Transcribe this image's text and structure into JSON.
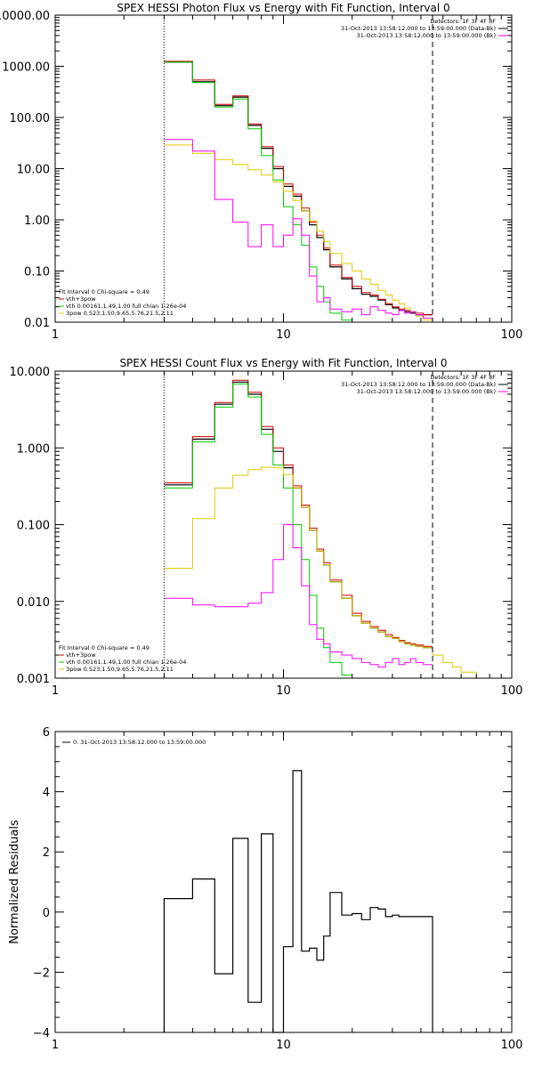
{
  "chart_data": [
    {
      "type": "line",
      "title": "SPEX HESSI Photon Flux vs Energy with Fit Function, Interval 0",
      "xscale": "log",
      "yscale": "log",
      "xlim": [
        1,
        100
      ],
      "ylim": [
        0.01,
        10000
      ],
      "x_ticks": [
        1,
        10,
        100
      ],
      "y_ticks": [
        0.01,
        0.1,
        1,
        10,
        100,
        1000,
        10000
      ],
      "x_tick_labels": [
        "1",
        "10",
        "100"
      ],
      "y_tick_labels": [
        "0.01",
        "0.10",
        "1.00",
        "10.00",
        "100.00",
        "1000.00",
        "10000.00"
      ],
      "vlines": [
        {
          "x": 3.0,
          "style": "dotted"
        },
        {
          "x": 45.0,
          "style": "dashed"
        }
      ],
      "legend_top_right": [
        {
          "text": "Detectors: 1F 3F 4F 8F",
          "color": "#000000"
        },
        {
          "text": "31-Oct-2013 13:58:12.000 to 13:59:00.000 (Data-Bk)",
          "color": "#000000"
        },
        {
          "text": "31-Oct-2013 13:58:12.000 to 13:59:00.000 (Bk)",
          "color": "#ff00ff"
        }
      ],
      "legend_bottom_left": [
        {
          "text": "Fit Interval 0   Chi-square = 0.49",
          "color": "#000000"
        },
        {
          "text": "vth+3pow",
          "color": "#cc0000"
        },
        {
          "text": "vth 0.00161,1.49,1.00  full chian 1.26e-04",
          "color": "#00cc00"
        },
        {
          "text": "3pow 0.523,1.50,9.65,5.76,21.5,2.11",
          "color": "#ddcc00"
        }
      ],
      "edges": [
        3.0,
        4.0,
        5.0,
        6.0,
        7.0,
        8.0,
        9.0,
        10.0,
        11.0,
        12.0,
        13.0,
        14.0,
        15.0,
        16.0,
        18.0,
        20.0,
        22.0,
        24.0,
        26.0,
        28.0,
        30.0,
        32.0,
        34.0,
        36.0,
        38.0,
        41.0,
        45.0
      ],
      "series": [
        {
          "color": "#000000",
          "width": 1.2,
          "edges": [
            3.0,
            4.0,
            5.0,
            6.0,
            7.0,
            8.0,
            9.0,
            10.0,
            11.0,
            12.0,
            13.0,
            14.0,
            15.0,
            16.0,
            18.0,
            20.0,
            22.0,
            24.0,
            26.0,
            28.0,
            30.0,
            32.0,
            34.0,
            36.0,
            38.0,
            41.0,
            45.0
          ],
          "values": [
            1200,
            500,
            170,
            250,
            70,
            25,
            10,
            4.5,
            2.9,
            1.5,
            0.8,
            0.45,
            0.26,
            0.12,
            0.07,
            0.045,
            0.035,
            0.032,
            0.027,
            0.022,
            0.019,
            0.017,
            0.016,
            0.015,
            0.014,
            0.014
          ]
        },
        {
          "color": "#cc0000",
          "width": 1.0,
          "edges": [
            3.0,
            4.0,
            5.0,
            6.0,
            7.0,
            8.0,
            9.0,
            10.0,
            11.0,
            12.0,
            13.0,
            14.0,
            15.0,
            16.0,
            18.0,
            20.0,
            22.0,
            24.0,
            26.0,
            28.0,
            30.0,
            32.0,
            34.0,
            36.0,
            38.0,
            41.0,
            45.0
          ],
          "values": [
            1250,
            540,
            180,
            265,
            75,
            27,
            11,
            5.0,
            3.2,
            1.7,
            0.9,
            0.5,
            0.28,
            0.13,
            0.075,
            0.05,
            0.038,
            0.034,
            0.028,
            0.023,
            0.02,
            0.018,
            0.017,
            0.016,
            0.015,
            0.014
          ]
        },
        {
          "color": "#00cc00",
          "width": 1.0,
          "edges": [
            3.0,
            4.0,
            5.0,
            6.0,
            7.0,
            8.0,
            9.0,
            10.0,
            11.0,
            12.0,
            13.0,
            14.0,
            15.0,
            16.0,
            18.0,
            20.0
          ],
          "values": [
            1200,
            480,
            160,
            230,
            60,
            18,
            6.0,
            1.8,
            0.8,
            0.32,
            0.12,
            0.05,
            0.025,
            0.015,
            0.011
          ]
        },
        {
          "color": "#ddcc00",
          "width": 1.0,
          "edges": [
            3.0,
            4.0,
            5.0,
            6.0,
            7.0,
            8.0,
            9.0,
            10.0,
            11.0,
            12.0,
            13.0,
            14.0,
            15.0,
            16.0,
            18.0,
            20.0,
            22.0,
            24.0,
            26.0,
            28.0,
            30.0,
            32.0,
            34.0,
            36.0,
            38.0,
            41.0,
            45.0,
            50.0
          ],
          "values": [
            29,
            20,
            15,
            12,
            9.5,
            7.5,
            5.5,
            3.6,
            2.4,
            1.5,
            0.95,
            0.6,
            0.38,
            0.22,
            0.14,
            0.1,
            0.07,
            0.055,
            0.042,
            0.034,
            0.027,
            0.023,
            0.019,
            0.016,
            0.013,
            0.011,
            0.008
          ]
        },
        {
          "color": "#ff00ff",
          "width": 1.0,
          "edges": [
            3.0,
            4.0,
            5.0,
            6.0,
            7.0,
            8.0,
            9.0,
            10.0,
            11.0,
            12.0,
            13.0,
            14.0,
            15.0,
            16.0,
            18.0,
            20.0,
            22.0,
            24.0,
            26.0,
            28.0,
            30.0,
            32.0,
            34.0,
            36.0,
            38.0,
            41.0,
            45.0
          ],
          "values": [
            37,
            22,
            2.5,
            0.9,
            0.3,
            0.8,
            0.3,
            0.5,
            1.05,
            0.5,
            0.08,
            0.025,
            0.03,
            0.018,
            0.016,
            0.018,
            0.014,
            0.02,
            0.017,
            0.015,
            0.014,
            0.017,
            0.015,
            0.016,
            0.014,
            0.012
          ]
        }
      ]
    },
    {
      "type": "line",
      "title": "SPEX HESSI Count Flux vs Energy with Fit Function, Interval 0",
      "xscale": "log",
      "yscale": "log",
      "xlim": [
        1,
        100
      ],
      "ylim": [
        0.001,
        10
      ],
      "x_ticks": [
        1,
        10,
        100
      ],
      "y_ticks": [
        0.001,
        0.01,
        0.1,
        1,
        10
      ],
      "x_tick_labels": [
        "1",
        "10",
        "100"
      ],
      "y_tick_labels": [
        "0.001",
        "0.010",
        "0.100",
        "1.000",
        "10.000"
      ],
      "vlines": [
        {
          "x": 3.0,
          "style": "dotted"
        },
        {
          "x": 45.0,
          "style": "dashed"
        }
      ],
      "legend_top_right": [
        {
          "text": "Detectors: 1F 3F 4F 8F",
          "color": "#000000"
        },
        {
          "text": "31-Oct-2013 13:58:12.000 to 13:59:00.000 (Data-Bk)",
          "color": "#000000"
        },
        {
          "text": "31-Oct-2013 13:58:12.000 to 13:59:00.000 (Bk)",
          "color": "#ff00ff"
        }
      ],
      "legend_bottom_left": [
        {
          "text": "Fit Interval 0   Chi-square = 0.49",
          "color": "#000000"
        },
        {
          "text": "vth+3pow",
          "color": "#cc0000"
        },
        {
          "text": "vth 0.00161,1.49,1.00  full chian 1.26e-04",
          "color": "#00cc00"
        },
        {
          "text": "3pow 0.523,1.50,9.65,5.76,21.5,2.11",
          "color": "#ddcc00"
        }
      ],
      "series": [
        {
          "color": "#000000",
          "width": 1.2,
          "edges": [
            3.0,
            4.0,
            5.0,
            6.0,
            7.0,
            8.0,
            9.0,
            10.0,
            11.0,
            12.0,
            13.0,
            14.0,
            15.0,
            16.0,
            18.0,
            20.0,
            22.0,
            24.0,
            26.0,
            28.0,
            30.0,
            32.0,
            34.0,
            36.0,
            38.0,
            41.0,
            45.0
          ],
          "values": [
            0.33,
            1.3,
            3.7,
            7.2,
            5.0,
            1.75,
            0.9,
            0.55,
            0.3,
            0.17,
            0.085,
            0.045,
            0.03,
            0.018,
            0.011,
            0.0065,
            0.0052,
            0.0045,
            0.004,
            0.0035,
            0.0033,
            0.003,
            0.0028,
            0.0027,
            0.0026,
            0.0025
          ]
        },
        {
          "color": "#cc0000",
          "width": 1.0,
          "edges": [
            3.0,
            4.0,
            5.0,
            6.0,
            7.0,
            8.0,
            9.0,
            10.0,
            11.0,
            12.0,
            13.0,
            14.0,
            15.0,
            16.0,
            18.0,
            20.0,
            22.0,
            24.0,
            26.0,
            28.0,
            30.0,
            32.0,
            34.0,
            36.0,
            38.0,
            41.0,
            45.0
          ],
          "values": [
            0.35,
            1.4,
            3.9,
            7.6,
            5.3,
            1.9,
            1.0,
            0.6,
            0.32,
            0.18,
            0.09,
            0.048,
            0.032,
            0.019,
            0.012,
            0.007,
            0.0055,
            0.0047,
            0.0042,
            0.0037,
            0.0034,
            0.0031,
            0.0029,
            0.0028,
            0.0027,
            0.0026
          ]
        },
        {
          "color": "#00cc00",
          "width": 1.0,
          "edges": [
            3.0,
            4.0,
            5.0,
            6.0,
            7.0,
            8.0,
            9.0,
            10.0,
            11.0,
            12.0,
            13.0,
            14.0,
            15.0,
            16.0,
            18.0,
            20.0
          ],
          "values": [
            0.3,
            1.2,
            3.4,
            6.8,
            4.6,
            1.5,
            0.6,
            0.3,
            0.1,
            0.035,
            0.012,
            0.0045,
            0.0025,
            0.0016,
            0.0011
          ]
        },
        {
          "color": "#ddcc00",
          "width": 1.0,
          "edges": [
            3.0,
            4.0,
            5.0,
            6.0,
            7.0,
            8.0,
            9.0,
            10.0,
            11.0,
            12.0,
            13.0,
            14.0,
            15.0,
            16.0,
            18.0,
            20.0,
            22.0,
            24.0,
            26.0,
            28.0,
            30.0,
            32.0,
            34.0,
            36.0,
            38.0,
            41.0,
            45.0,
            50.0,
            55.0,
            60.0,
            70.0,
            80.0
          ],
          "values": [
            0.027,
            0.12,
            0.3,
            0.44,
            0.52,
            0.56,
            0.55,
            0.45,
            0.3,
            0.17,
            0.085,
            0.045,
            0.03,
            0.018,
            0.011,
            0.0065,
            0.0052,
            0.0045,
            0.004,
            0.0035,
            0.0033,
            0.003,
            0.0028,
            0.0027,
            0.0026,
            0.0025,
            0.002,
            0.0016,
            0.0014,
            0.0012,
            0.001
          ]
        },
        {
          "color": "#ff00ff",
          "width": 1.0,
          "edges": [
            3.0,
            4.0,
            5.0,
            6.0,
            7.0,
            8.0,
            9.0,
            10.0,
            11.0,
            12.0,
            13.0,
            14.0,
            15.0,
            16.0,
            18.0,
            20.0,
            22.0,
            24.0,
            26.0,
            28.0,
            30.0,
            32.0,
            34.0,
            36.0,
            38.0,
            41.0,
            45.0
          ],
          "values": [
            0.011,
            0.009,
            0.0085,
            0.0085,
            0.0095,
            0.013,
            0.035,
            0.1,
            0.05,
            0.016,
            0.005,
            0.0032,
            0.0028,
            0.0022,
            0.002,
            0.0018,
            0.0016,
            0.0015,
            0.0014,
            0.0016,
            0.0018,
            0.0015,
            0.0016,
            0.0018,
            0.0016,
            0.0015
          ]
        }
      ]
    },
    {
      "type": "line",
      "title": "",
      "ylabel": "Normalized Residuals",
      "xscale": "log",
      "yscale": "linear",
      "xlim": [
        1,
        100
      ],
      "ylim": [
        -4,
        6
      ],
      "x_ticks": [
        1,
        10,
        100
      ],
      "y_ticks": [
        -4,
        -2,
        0,
        2,
        4,
        6
      ],
      "x_tick_labels": [
        "1",
        "10",
        "100"
      ],
      "y_tick_labels": [
        "−4",
        "−2",
        "0",
        "2",
        "4",
        "6"
      ],
      "vlines": [],
      "legend_top_left": [
        {
          "text": "0. 31-Oct-2013 13:58:12.000 to 13:59:00.000",
          "color": "#000000"
        }
      ],
      "series": [
        {
          "color": "#000000",
          "width": 1.2,
          "edges": [
            3.0,
            4.0,
            5.0,
            6.0,
            7.0,
            8.0,
            9.0,
            10.0,
            11.0,
            12.0,
            13.0,
            14.0,
            15.0,
            16.0,
            18.0,
            20.0,
            22.0,
            24.0,
            26.0,
            28.0,
            30.0,
            32.0,
            34.0,
            36.0,
            38.0,
            41.0,
            45.0
          ],
          "values": [
            0.45,
            1.1,
            -2.05,
            2.45,
            -3.0,
            2.6,
            -4.0,
            -1.15,
            4.7,
            -1.3,
            -1.2,
            -1.6,
            -0.8,
            0.65,
            -0.1,
            -0.05,
            -0.25,
            0.15,
            0.1,
            -0.15,
            -0.1,
            -0.15,
            -0.15,
            -0.15,
            -0.15,
            -0.15
          ],
          "start_bottom": true
        }
      ]
    }
  ]
}
